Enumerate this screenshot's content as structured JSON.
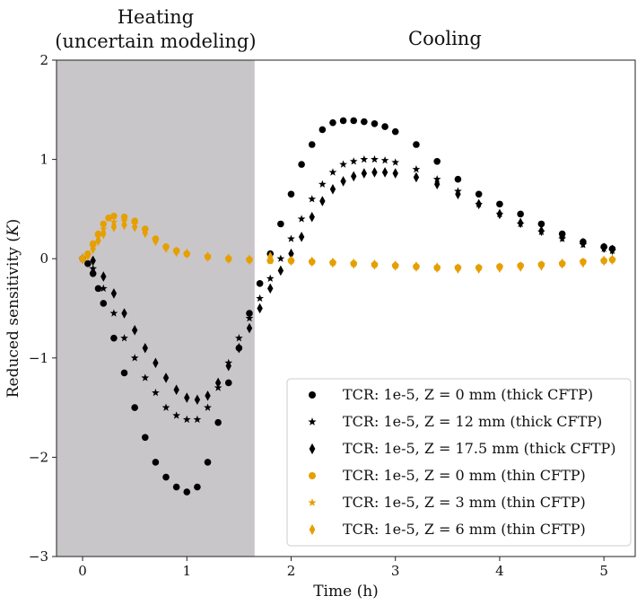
{
  "chart_data": {
    "type": "scatter",
    "title": "",
    "xlabel": "Time (h)",
    "ylabel": "Reduced sensitivity (K)",
    "ylabel_var": "K",
    "xlim": [
      -0.25,
      5.3
    ],
    "ylim": [
      -3,
      2
    ],
    "x_ticks": [
      0,
      1,
      2,
      3,
      4,
      5
    ],
    "y_ticks": [
      -3,
      -2,
      -1,
      0,
      1,
      2
    ],
    "x_tick_labels": [
      "0",
      "1",
      "2",
      "3",
      "4",
      "5"
    ],
    "y_tick_labels": [
      "−3",
      "−2",
      "−1",
      "0",
      "1",
      "2"
    ],
    "grid": false,
    "legend_position": "bottom-right",
    "regions": [
      {
        "label_line1": "Heating",
        "label_line2": "(uncertain modeling)",
        "x_start": -0.25,
        "x_end": 1.65,
        "color": "#c9c6ca"
      },
      {
        "label_line1": "Cooling",
        "label_line2": "",
        "x_start": 1.65,
        "x_end": 5.3,
        "color": "#ffffff"
      }
    ],
    "series": [
      {
        "name": "TCR: 1e-5, Z = 0 mm (thick CFTP)",
        "marker": "circle",
        "color": "#000000",
        "x": [
          0.0,
          0.05,
          0.1,
          0.15,
          0.2,
          0.3,
          0.4,
          0.5,
          0.6,
          0.7,
          0.8,
          0.9,
          1.0,
          1.1,
          1.2,
          1.3,
          1.4,
          1.5,
          1.6,
          1.7,
          1.8,
          1.9,
          2.0,
          2.1,
          2.2,
          2.3,
          2.4,
          2.5,
          2.6,
          2.7,
          2.8,
          2.9,
          3.0,
          3.2,
          3.4,
          3.6,
          3.8,
          4.0,
          4.2,
          4.4,
          4.6,
          4.8,
          5.0,
          5.08
        ],
        "y": [
          0.0,
          -0.05,
          -0.15,
          -0.3,
          -0.45,
          -0.8,
          -1.15,
          -1.5,
          -1.8,
          -2.05,
          -2.2,
          -2.3,
          -2.35,
          -2.3,
          -2.05,
          -1.65,
          -1.25,
          -0.9,
          -0.55,
          -0.25,
          0.05,
          0.35,
          0.65,
          0.95,
          1.15,
          1.3,
          1.37,
          1.39,
          1.39,
          1.38,
          1.36,
          1.33,
          1.28,
          1.15,
          0.98,
          0.8,
          0.65,
          0.55,
          0.45,
          0.35,
          0.25,
          0.17,
          0.12,
          0.1
        ]
      },
      {
        "name": "TCR: 1e-5, Z = 12 mm (thick CFTP)",
        "marker": "star",
        "color": "#000000",
        "x": [
          0.0,
          0.1,
          0.2,
          0.3,
          0.4,
          0.5,
          0.6,
          0.7,
          0.8,
          0.9,
          1.0,
          1.1,
          1.2,
          1.3,
          1.4,
          1.5,
          1.6,
          1.7,
          1.8,
          1.9,
          2.0,
          2.1,
          2.2,
          2.3,
          2.4,
          2.5,
          2.6,
          2.7,
          2.8,
          2.9,
          3.0,
          3.2,
          3.4,
          3.6,
          3.8,
          4.0,
          4.2,
          4.4,
          4.6,
          4.8,
          5.0,
          5.08
        ],
        "y": [
          0.0,
          -0.1,
          -0.3,
          -0.55,
          -0.8,
          -1.0,
          -1.2,
          -1.35,
          -1.5,
          -1.58,
          -1.62,
          -1.62,
          -1.5,
          -1.3,
          -1.05,
          -0.8,
          -0.6,
          -0.4,
          -0.2,
          0.0,
          0.2,
          0.4,
          0.6,
          0.75,
          0.87,
          0.95,
          0.98,
          1.0,
          1.0,
          0.99,
          0.97,
          0.9,
          0.8,
          0.68,
          0.55,
          0.45,
          0.35,
          0.27,
          0.2,
          0.14,
          0.1,
          0.08
        ]
      },
      {
        "name": "TCR: 1e-5, Z = 17.5 mm (thick CFTP)",
        "marker": "diamond",
        "color": "#000000",
        "x": [
          0.0,
          0.1,
          0.2,
          0.3,
          0.4,
          0.5,
          0.6,
          0.7,
          0.8,
          0.9,
          1.0,
          1.1,
          1.2,
          1.3,
          1.4,
          1.5,
          1.6,
          1.7,
          1.8,
          1.9,
          2.0,
          2.1,
          2.2,
          2.3,
          2.4,
          2.5,
          2.6,
          2.7,
          2.8,
          2.9,
          3.0,
          3.2,
          3.4,
          3.6,
          3.8,
          4.0,
          4.2,
          4.4,
          4.6,
          4.8,
          5.0,
          5.08
        ],
        "y": [
          0.0,
          -0.02,
          -0.18,
          -0.35,
          -0.55,
          -0.72,
          -0.9,
          -1.05,
          -1.2,
          -1.32,
          -1.4,
          -1.42,
          -1.38,
          -1.25,
          -1.08,
          -0.9,
          -0.7,
          -0.5,
          -0.3,
          -0.12,
          0.05,
          0.22,
          0.42,
          0.58,
          0.7,
          0.78,
          0.83,
          0.86,
          0.87,
          0.87,
          0.86,
          0.82,
          0.75,
          0.65,
          0.55,
          0.45,
          0.36,
          0.28,
          0.22,
          0.16,
          0.11,
          0.09
        ]
      },
      {
        "name": "TCR: 1e-5, Z = 0 mm (thin CFTP)",
        "marker": "circle",
        "color": "#E69F00",
        "x": [
          0.0,
          0.05,
          0.1,
          0.15,
          0.2,
          0.25,
          0.3,
          0.4,
          0.5,
          0.6,
          0.7,
          0.8,
          0.9,
          1.0,
          1.2,
          1.4,
          1.6,
          1.8,
          2.0,
          2.2,
          2.4,
          2.6,
          2.8,
          3.0,
          3.2,
          3.4,
          3.6,
          3.8,
          4.0,
          4.2,
          4.4,
          4.6,
          4.8,
          5.0,
          5.08
        ],
        "y": [
          0.0,
          0.05,
          0.15,
          0.25,
          0.35,
          0.41,
          0.43,
          0.42,
          0.38,
          0.3,
          0.2,
          0.12,
          0.08,
          0.05,
          0.02,
          0.0,
          -0.01,
          -0.02,
          -0.02,
          -0.03,
          -0.04,
          -0.05,
          -0.06,
          -0.07,
          -0.08,
          -0.09,
          -0.09,
          -0.09,
          -0.08,
          -0.07,
          -0.06,
          -0.05,
          -0.03,
          -0.02,
          -0.01
        ]
      },
      {
        "name": "TCR: 1e-5, Z = 3 mm (thin CFTP)",
        "marker": "star",
        "color": "#E69F00",
        "x": [
          0.0,
          0.05,
          0.1,
          0.15,
          0.2,
          0.3,
          0.4,
          0.5,
          0.6,
          0.7,
          0.8,
          0.9,
          1.0,
          1.2,
          1.4,
          1.6,
          1.8,
          2.0,
          2.2,
          2.4,
          2.6,
          2.8,
          3.0,
          3.2,
          3.4,
          3.6,
          3.8,
          4.0,
          4.2,
          4.4,
          4.6,
          4.8,
          5.0,
          5.08
        ],
        "y": [
          0.0,
          0.04,
          0.12,
          0.22,
          0.3,
          0.37,
          0.38,
          0.35,
          0.28,
          0.19,
          0.12,
          0.08,
          0.05,
          0.02,
          0.0,
          -0.01,
          -0.02,
          -0.02,
          -0.03,
          -0.04,
          -0.05,
          -0.06,
          -0.07,
          -0.08,
          -0.09,
          -0.09,
          -0.09,
          -0.08,
          -0.07,
          -0.06,
          -0.05,
          -0.03,
          -0.02,
          -0.01
        ]
      },
      {
        "name": "TCR: 1e-5, Z = 6 mm (thin CFTP)",
        "marker": "diamond",
        "color": "#E69F00",
        "x": [
          0.0,
          0.05,
          0.1,
          0.15,
          0.2,
          0.3,
          0.4,
          0.5,
          0.6,
          0.7,
          0.8,
          0.9,
          1.0,
          1.2,
          1.4,
          1.6,
          1.8,
          2.0,
          2.2,
          2.4,
          2.6,
          2.8,
          3.0,
          3.2,
          3.4,
          3.6,
          3.8,
          4.0,
          4.2,
          4.4,
          4.6,
          4.8,
          5.0,
          5.08
        ],
        "y": [
          0.0,
          0.03,
          0.1,
          0.18,
          0.25,
          0.32,
          0.34,
          0.32,
          0.26,
          0.18,
          0.11,
          0.07,
          0.05,
          0.02,
          0.0,
          -0.01,
          0.02,
          -0.02,
          -0.03,
          -0.04,
          -0.05,
          -0.06,
          -0.07,
          -0.08,
          -0.09,
          -0.1,
          -0.1,
          -0.09,
          -0.08,
          -0.07,
          -0.05,
          -0.04,
          -0.02,
          -0.01
        ]
      }
    ]
  }
}
